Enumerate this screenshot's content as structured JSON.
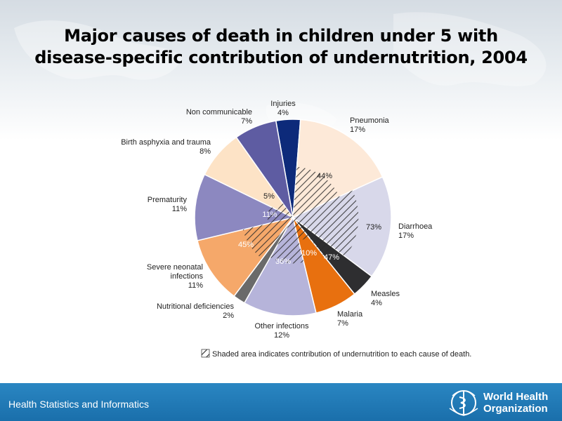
{
  "title_line1": "Major causes of death in children under 5 with",
  "title_line2": "disease-specific contribution of undernutrition, 2004",
  "footer": {
    "left_text": "Health Statistics and Informatics",
    "org_line1": "World Health",
    "org_line2": "Organization"
  },
  "legend_note": "Shaded area indicates contribution of undernutrition to each cause of death.",
  "chart_data": {
    "type": "pie",
    "title": "Major causes of death in children under 5 with disease-specific contribution of undernutrition, 2004",
    "slices": [
      {
        "name": "Injuries",
        "value": 4,
        "value_label": "4%",
        "color": "#0d2a7a",
        "undernutrition": null,
        "label_lines": [
          "Injuries",
          "4%"
        ]
      },
      {
        "name": "Pneumonia",
        "value": 17,
        "value_label": "17%",
        "color": "#fde9d8",
        "undernutrition": 44,
        "undernutrition_label": "44%",
        "label_lines": [
          "Pneumonia",
          "17%"
        ]
      },
      {
        "name": "Diarrhoea",
        "value": 17,
        "value_label": "17%",
        "color": "#d8d8ea",
        "undernutrition": 73,
        "undernutrition_label": "73%",
        "label_lines": [
          "Diarrhoea",
          "17%"
        ]
      },
      {
        "name": "Measles",
        "value": 4,
        "value_label": "4%",
        "color": "#2e2e30",
        "undernutrition": 47,
        "undernutrition_label": "47%",
        "label_lines": [
          "Measles",
          "4%"
        ]
      },
      {
        "name": "Malaria",
        "value": 7,
        "value_label": "7%",
        "color": "#e8700f",
        "undernutrition": 10,
        "undernutrition_label": "10%",
        "label_lines": [
          "Malaria",
          "7%"
        ]
      },
      {
        "name": "Other infections",
        "value": 12,
        "value_label": "12%",
        "color": "#b6b4da",
        "undernutrition": 36,
        "undernutrition_label": "36%",
        "label_lines": [
          "Other infections",
          "12%"
        ]
      },
      {
        "name": "Nutritional deficiencies",
        "value": 2,
        "value_label": "2%",
        "color": "#6a6a6a",
        "undernutrition": null,
        "label_lines": [
          "Nutritional deficiencies",
          "2%"
        ]
      },
      {
        "name": "Severe neonatal infections",
        "value": 11,
        "value_label": "11%",
        "color": "#f5a86a",
        "undernutrition": 45,
        "undernutrition_label": "45%",
        "label_lines": [
          "Severe neonatal",
          "infections",
          "11%"
        ]
      },
      {
        "name": "Prematurity",
        "value": 11,
        "value_label": "11%",
        "color": "#8c88c0",
        "undernutrition": 11,
        "undernutrition_label": "11%",
        "label_lines": [
          "Prematurity",
          "11%"
        ]
      },
      {
        "name": "Birth asphyxia and trauma",
        "value": 8,
        "value_label": "8%",
        "color": "#fde3c6",
        "undernutrition": 5,
        "undernutrition_label": "5%",
        "label_lines": [
          "Birth asphyxia and trauma",
          "8%"
        ]
      },
      {
        "name": "Non communicable",
        "value": 7,
        "value_label": "7%",
        "color": "#5e5ca2",
        "undernutrition": null,
        "label_lines": [
          "Non communicable",
          "7%"
        ]
      }
    ]
  }
}
